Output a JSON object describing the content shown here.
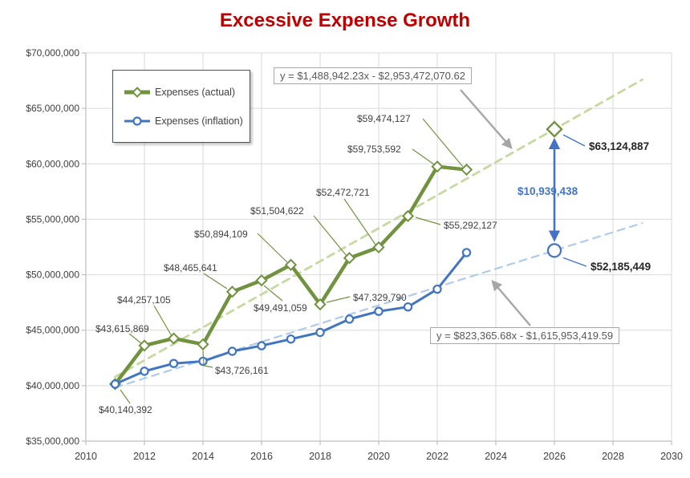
{
  "title": "Excessive Expense Growth",
  "colors": {
    "title": "#C00000",
    "actual_line": "#71933F",
    "actual_trend": "#C6D9A0",
    "inflation_line": "#4175C1",
    "inflation_trend": "#AECBEC",
    "grid": "#D9D9D9",
    "axis": "#BFBFBF",
    "axis_text": "#404040",
    "label_text": "#404040",
    "annotation_dark": "#262626",
    "annotation_blue": "#4472C4",
    "arrow_gray": "#A6A6A6",
    "equation_text": "#595959",
    "legend_border": "#44546A"
  },
  "legend": {
    "items": [
      {
        "label": "Expenses (actual)",
        "marker": "diamond"
      },
      {
        "label": "Expenses (inflation)",
        "marker": "circle"
      }
    ]
  },
  "chart_data": {
    "type": "line",
    "title": "Excessive Expense Growth",
    "xlabel": "",
    "ylabel": "",
    "xlim": [
      2010,
      2030
    ],
    "ylim": [
      35000000,
      70000000
    ],
    "grid": true,
    "legend_position": "top-left",
    "x_ticks": [
      "2010",
      "2012",
      "2014",
      "2016",
      "2018",
      "2020",
      "2022",
      "2024",
      "2026",
      "2028",
      "2030"
    ],
    "y_ticks": [
      "$35,000,000",
      "$40,000,000",
      "$45,000,000",
      "$50,000,000",
      "$55,000,000",
      "$60,000,000",
      "$65,000,000",
      "$70,000,000"
    ],
    "years": [
      2011,
      2012,
      2013,
      2014,
      2015,
      2016,
      2017,
      2018,
      2019,
      2020,
      2021,
      2022,
      2023
    ],
    "series": [
      {
        "name": "Expenses (actual)",
        "marker": "diamond",
        "values": [
          40140392,
          43615869,
          44257105,
          43726161,
          48465641,
          49491059,
          50894109,
          47329790,
          51504622,
          52472721,
          55292127,
          59753592,
          59474127
        ],
        "labels": [
          "$40,140,392",
          "$43,615,869",
          "$44,257,105",
          "$43,726,161",
          "$48,465,641",
          "$49,491,059",
          "$50,894,109",
          "$47,329,790",
          "$51,504,622",
          "$52,472,721",
          "$55,292,127",
          "$59,753,592",
          "$59,474,127"
        ]
      },
      {
        "name": "Expenses (inflation)",
        "marker": "circle",
        "values": [
          40140392,
          41300000,
          42000000,
          42200000,
          43100000,
          43600000,
          44200000,
          44800000,
          46000000,
          46700000,
          47100000,
          48700000,
          52000000
        ]
      }
    ],
    "trendlines": [
      {
        "series": "Expenses (actual)",
        "slope": 1488942.23,
        "intercept": -2953472070.62,
        "equation": "y = $1,488,942.23x - $2,953,472,070.62"
      },
      {
        "series": "Expenses (inflation)",
        "slope": 823365.68,
        "intercept": -1615953419.59,
        "equation": "y = $823,365.68x - $1,615,953,419.59"
      }
    ],
    "projection": {
      "year": 2026,
      "actual_value": 63124887,
      "actual_label": "$63,124,887",
      "inflation_value": 52185449,
      "inflation_label": "$52,185,449",
      "difference_value": 10939438,
      "difference_label": "$10,939,438"
    }
  }
}
